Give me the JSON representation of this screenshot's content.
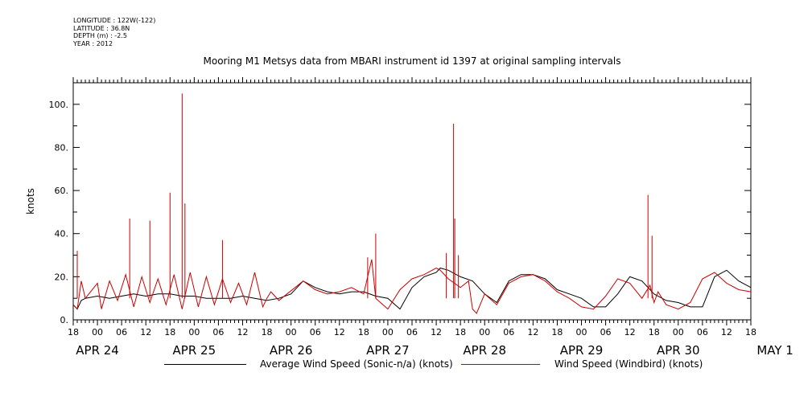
{
  "header": {
    "meta_lines": [
      "LONGITUDE : 122W(-122)",
      "LATITUDE : 36.8N",
      "DEPTH (m) : -2.5",
      "YEAR : 2012"
    ],
    "title": "Mooring M1 Metsys data from MBARI instrument id 1397 at original sampling intervals"
  },
  "legend": {
    "items": [
      {
        "label": "Average Wind Speed (Sonic-n/a) (knots)",
        "color": "#000000"
      },
      {
        "label": "Wind Speed (Windbird) (knots)",
        "color": "#cc0000"
      }
    ]
  },
  "chart_data": {
    "type": "line",
    "title": "Mooring M1 Metsys data from MBARI instrument id 1397 at original sampling intervals",
    "xlabel": "",
    "ylabel": "knots",
    "xlim_hours": [
      -6,
      162
    ],
    "ylim": [
      0,
      110
    ],
    "yticks": [
      0,
      20,
      40,
      60,
      80,
      100
    ],
    "ytick_labels": [
      "0.",
      "20.",
      "40.",
      "60.",
      "80.",
      "100."
    ],
    "hour_tick_labels": [
      "18",
      "00",
      "06",
      "12",
      "18",
      "00",
      "06",
      "12",
      "18",
      "00",
      "06",
      "12",
      "18",
      "00",
      "06",
      "12",
      "18",
      "00",
      "06",
      "12",
      "18",
      "00",
      "06",
      "12",
      "18",
      "00",
      "06",
      "12",
      "18"
    ],
    "date_labels": [
      {
        "label": "APR 24",
        "hour": 0
      },
      {
        "label": "APR 25",
        "hour": 24
      },
      {
        "label": "APR 26",
        "hour": 48
      },
      {
        "label": "APR 27",
        "hour": 72
      },
      {
        "label": "APR 28",
        "hour": 96
      },
      {
        "label": "APR 29",
        "hour": 120
      },
      {
        "label": "APR 30",
        "hour": 144
      },
      {
        "label": "MAY  1",
        "hour": 168
      }
    ],
    "series": [
      {
        "name": "Average Wind Speed (Sonic-n/a) (knots)",
        "color": "#000000",
        "x": [
          -6,
          -5,
          -4,
          -3,
          0,
          3,
          6,
          9,
          12,
          15,
          18,
          21,
          24,
          27,
          30,
          33,
          36,
          39,
          42,
          45,
          48,
          51,
          54,
          57,
          60,
          63,
          66,
          69,
          72,
          75,
          78,
          81,
          84,
          85,
          87,
          90,
          93,
          96,
          99,
          102,
          105,
          108,
          111,
          114,
          117,
          120,
          123,
          126,
          129,
          132,
          135,
          138,
          141,
          144,
          147,
          150,
          153,
          156,
          159,
          162
        ],
        "y": [
          7,
          5,
          9,
          10,
          11,
          10,
          11,
          12,
          11,
          12,
          12,
          11,
          11,
          10,
          10,
          10,
          11,
          10,
          9,
          10,
          12,
          18,
          15,
          13,
          12,
          13,
          13,
          11,
          10,
          5,
          15,
          20,
          22,
          24,
          23,
          20,
          18,
          12,
          8,
          18,
          21,
          21,
          19,
          14,
          12,
          10,
          6,
          6,
          12,
          20,
          18,
          12,
          9,
          8,
          6,
          6,
          20,
          23,
          18,
          15
        ]
      },
      {
        "name": "Wind Speed (Windbird) (knots)",
        "color": "#cc0000",
        "x": [
          -6,
          -5,
          -4,
          -3,
          0,
          1,
          3,
          5,
          7,
          9,
          11,
          13,
          15,
          17,
          19,
          21,
          23,
          25,
          27,
          29,
          31,
          33,
          35,
          37,
          39,
          41,
          42,
          43,
          45,
          47,
          49,
          51,
          54,
          57,
          60,
          63,
          66,
          68,
          69,
          72,
          75,
          78,
          81,
          84,
          85,
          87,
          90,
          92,
          93,
          94,
          96,
          99,
          102,
          105,
          108,
          111,
          114,
          117,
          120,
          123,
          126,
          129,
          132,
          135,
          137,
          138,
          139,
          141,
          144,
          147,
          150,
          153,
          156,
          159,
          162
        ],
        "y": [
          7,
          5,
          18,
          10,
          17,
          5,
          18,
          9,
          21,
          6,
          20,
          8,
          19,
          7,
          21,
          5,
          22,
          6,
          20,
          7,
          19,
          8,
          17,
          7,
          22,
          6,
          10,
          13,
          9,
          12,
          15,
          18,
          14,
          12,
          13,
          15,
          12,
          28,
          10,
          5,
          14,
          19,
          21,
          24,
          23,
          19,
          15,
          18,
          5,
          3,
          12,
          7,
          17,
          20,
          21,
          18,
          13,
          10,
          6,
          5,
          11,
          19,
          17,
          10,
          16,
          8,
          13,
          7,
          5,
          8,
          19,
          22,
          17,
          14,
          13
        ]
      }
    ],
    "spikes": [
      {
        "series": "Wind Speed (Windbird) (knots)",
        "hour": -5,
        "value": 32
      },
      {
        "series": "Wind Speed (Windbird) (knots)",
        "hour": 8,
        "value": 47
      },
      {
        "series": "Wind Speed (Windbird) (knots)",
        "hour": 13,
        "value": 46
      },
      {
        "series": "Wind Speed (Windbird) (knots)",
        "hour": 18,
        "value": 59
      },
      {
        "series": "Wind Speed (Windbird) (knots)",
        "hour": 21,
        "value": 105
      },
      {
        "series": "Wind Speed (Windbird) (knots)",
        "hour": 21.7,
        "value": 54
      },
      {
        "series": "Wind Speed (Windbird) (knots)",
        "hour": 31,
        "value": 37
      },
      {
        "series": "Wind Speed (Windbird) (knots)",
        "hour": 67,
        "value": 29
      },
      {
        "series": "Wind Speed (Windbird) (knots)",
        "hour": 69,
        "value": 40
      },
      {
        "series": "Wind Speed (Windbird) (knots)",
        "hour": 86.5,
        "value": 31
      },
      {
        "series": "Wind Speed (Windbird) (knots)",
        "hour": 88.3,
        "value": 91
      },
      {
        "series": "Wind Speed (Windbird) (knots)",
        "hour": 88.6,
        "value": 47
      },
      {
        "series": "Wind Speed (Windbird) (knots)",
        "hour": 89.5,
        "value": 30
      },
      {
        "series": "Wind Speed (Windbird) (knots)",
        "hour": 136.5,
        "value": 58
      },
      {
        "series": "Wind Speed (Windbird) (knots)",
        "hour": 137.5,
        "value": 39
      }
    ]
  }
}
